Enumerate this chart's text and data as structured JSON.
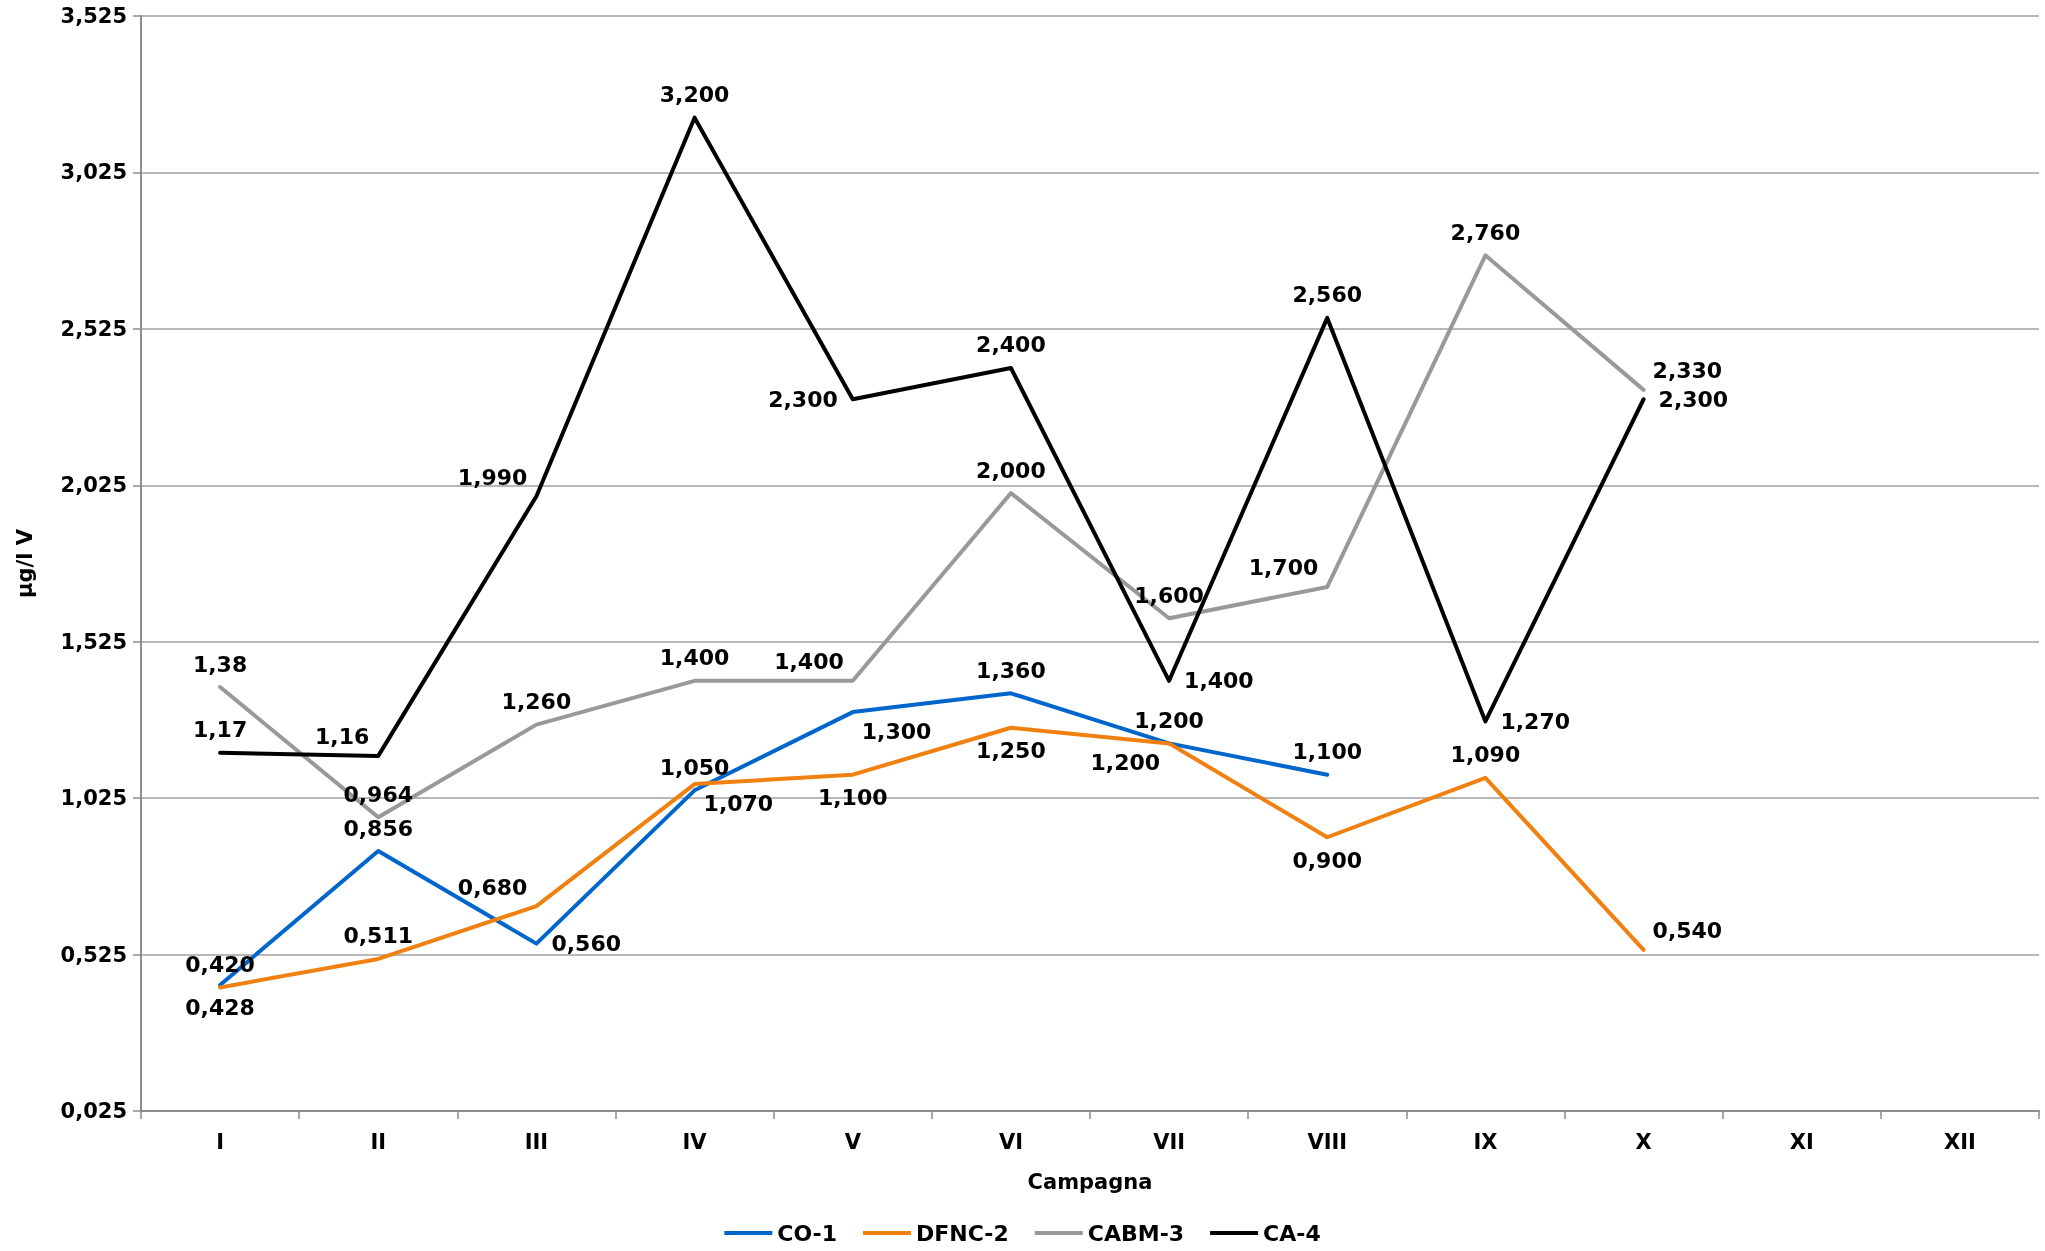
{
  "chart_data": {
    "type": "line",
    "xlabel": "Campagna",
    "ylabel": "µg/l V",
    "categories": [
      "I",
      "II",
      "III",
      "IV",
      "V",
      "VI",
      "VII",
      "VIII",
      "IX",
      "X",
      "XI",
      "XII"
    ],
    "series": [
      {
        "name": "CO-1",
        "color": "#0066cc",
        "values": [
          0.428,
          0.856,
          0.56,
          1.05,
          1.3,
          1.36,
          1.2,
          1.1,
          null,
          null,
          null,
          null
        ],
        "value_labels": [
          "0,428",
          "0,856",
          "0,560",
          "1,050",
          "1,300",
          "1,360",
          "1,200",
          "1,100",
          null,
          null,
          null,
          null
        ]
      },
      {
        "name": "DFNC-2",
        "color": "#f08010",
        "values": [
          0.42,
          0.511,
          0.68,
          1.07,
          1.1,
          1.25,
          1.2,
          0.9,
          1.09,
          0.54,
          null,
          null
        ],
        "value_labels": [
          "0,420",
          "0,511",
          "0,680",
          "1,070",
          "1,100",
          "1,250",
          "1,200",
          "0,900",
          "1,090",
          "0,540",
          null,
          null
        ]
      },
      {
        "name": "CABM-3",
        "color": "#999999",
        "values": [
          1.38,
          0.964,
          1.26,
          1.4,
          1.4,
          2.0,
          1.6,
          1.7,
          2.76,
          2.33,
          null,
          null
        ],
        "value_labels": [
          "1,38",
          "0,964",
          "1,260",
          "1,400",
          "1,400",
          "2,000",
          "1,600",
          "1,700",
          "2,760",
          "2,330",
          null,
          null
        ]
      },
      {
        "name": "CA-4",
        "color": "#000000",
        "values": [
          1.17,
          1.16,
          1.99,
          3.2,
          2.3,
          2.4,
          1.4,
          2.56,
          1.27,
          2.3,
          null,
          null
        ],
        "value_labels": [
          "1,17",
          "1,16",
          "1,990",
          "3,200",
          "2,300",
          "2,400",
          "1,400",
          "2,560",
          "1,270",
          "2,300",
          null,
          null
        ]
      }
    ],
    "ylim": [
      0.025,
      3.525
    ],
    "yticks": [
      {
        "value": 0.025,
        "label": "0,025"
      },
      {
        "value": 0.525,
        "label": "0,525"
      },
      {
        "value": 1.025,
        "label": "1,025"
      },
      {
        "value": 1.525,
        "label": "1,525"
      },
      {
        "value": 2.025,
        "label": "2,025"
      },
      {
        "value": 2.525,
        "label": "2,525"
      },
      {
        "value": 3.025,
        "label": "3,025"
      },
      {
        "value": 3.525,
        "label": "3,525"
      }
    ],
    "grid": "y",
    "legend": "bottom",
    "marker": "none",
    "line_style": "solid"
  }
}
